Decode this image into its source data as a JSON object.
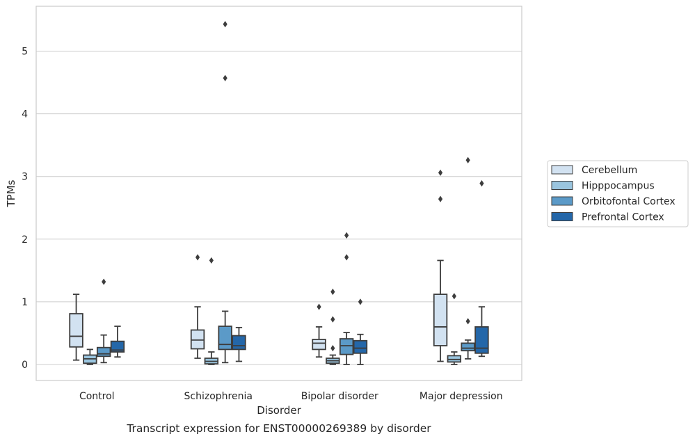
{
  "caption": "Transcript expression for ENST00000269389 by disorder",
  "chart_data": {
    "type": "box",
    "title": "",
    "xlabel": "Disorder",
    "ylabel": "TPMs",
    "ylim": [
      -0.25,
      5.7
    ],
    "yticks": [
      0,
      1,
      2,
      3,
      4,
      5
    ],
    "grid": "horizontal",
    "legend_position": "right",
    "categories": [
      "Control",
      "Schizophrenia",
      "Bipolar disorder",
      "Major depression"
    ],
    "series": [
      {
        "name": "Cerebellum",
        "color": "#d2e2f1",
        "boxes": [
          {
            "whisker_low": 0.07,
            "q1": 0.28,
            "median": 0.45,
            "q3": 0.81,
            "whisker_high": 1.12,
            "outliers": []
          },
          {
            "whisker_low": 0.1,
            "q1": 0.25,
            "median": 0.39,
            "q3": 0.55,
            "whisker_high": 0.92,
            "outliers": [
              1.71
            ]
          },
          {
            "whisker_low": 0.12,
            "q1": 0.24,
            "median": 0.34,
            "q3": 0.4,
            "whisker_high": 0.6,
            "outliers": [
              0.92
            ]
          },
          {
            "whisker_low": 0.05,
            "q1": 0.3,
            "median": 0.6,
            "q3": 1.12,
            "whisker_high": 1.66,
            "outliers": [
              2.64,
              3.06
            ]
          }
        ]
      },
      {
        "name": "Hipppocampus",
        "color": "#9ac5df",
        "boxes": [
          {
            "whisker_low": 0.0,
            "q1": 0.02,
            "median": 0.09,
            "q3": 0.15,
            "whisker_high": 0.24,
            "outliers": []
          },
          {
            "whisker_low": 0.0,
            "q1": 0.01,
            "median": 0.05,
            "q3": 0.1,
            "whisker_high": 0.2,
            "outliers": [
              1.66
            ]
          },
          {
            "whisker_low": 0.0,
            "q1": 0.02,
            "median": 0.06,
            "q3": 0.1,
            "whisker_high": 0.15,
            "outliers": [
              0.26,
              0.72,
              1.16
            ]
          },
          {
            "whisker_low": 0.0,
            "q1": 0.04,
            "median": 0.08,
            "q3": 0.14,
            "whisker_high": 0.2,
            "outliers": [
              1.09
            ]
          }
        ]
      },
      {
        "name": "Orbitofontal Cortex",
        "color": "#5b9ac8",
        "boxes": [
          {
            "whisker_low": 0.03,
            "q1": 0.13,
            "median": 0.17,
            "q3": 0.27,
            "whisker_high": 0.47,
            "outliers": [
              1.32
            ]
          },
          {
            "whisker_low": 0.03,
            "q1": 0.24,
            "median": 0.32,
            "q3": 0.61,
            "whisker_high": 0.85,
            "outliers": [
              4.57,
              5.43
            ]
          },
          {
            "whisker_low": 0.0,
            "q1": 0.16,
            "median": 0.3,
            "q3": 0.41,
            "whisker_high": 0.51,
            "outliers": [
              1.71,
              2.06
            ]
          },
          {
            "whisker_low": 0.09,
            "q1": 0.22,
            "median": 0.26,
            "q3": 0.34,
            "whisker_high": 0.39,
            "outliers": [
              0.69,
              3.26
            ]
          }
        ]
      },
      {
        "name": "Prefrontal Cortex",
        "color": "#2467a9",
        "boxes": [
          {
            "whisker_low": 0.12,
            "q1": 0.2,
            "median": 0.23,
            "q3": 0.37,
            "whisker_high": 0.61,
            "outliers": []
          },
          {
            "whisker_low": 0.05,
            "q1": 0.24,
            "median": 0.3,
            "q3": 0.46,
            "whisker_high": 0.59,
            "outliers": []
          },
          {
            "whisker_low": 0.0,
            "q1": 0.18,
            "median": 0.26,
            "q3": 0.38,
            "whisker_high": 0.48,
            "outliers": [
              1.0
            ]
          },
          {
            "whisker_low": 0.13,
            "q1": 0.18,
            "median": 0.26,
            "q3": 0.6,
            "whisker_high": 0.92,
            "outliers": [
              2.89
            ]
          }
        ]
      }
    ]
  }
}
